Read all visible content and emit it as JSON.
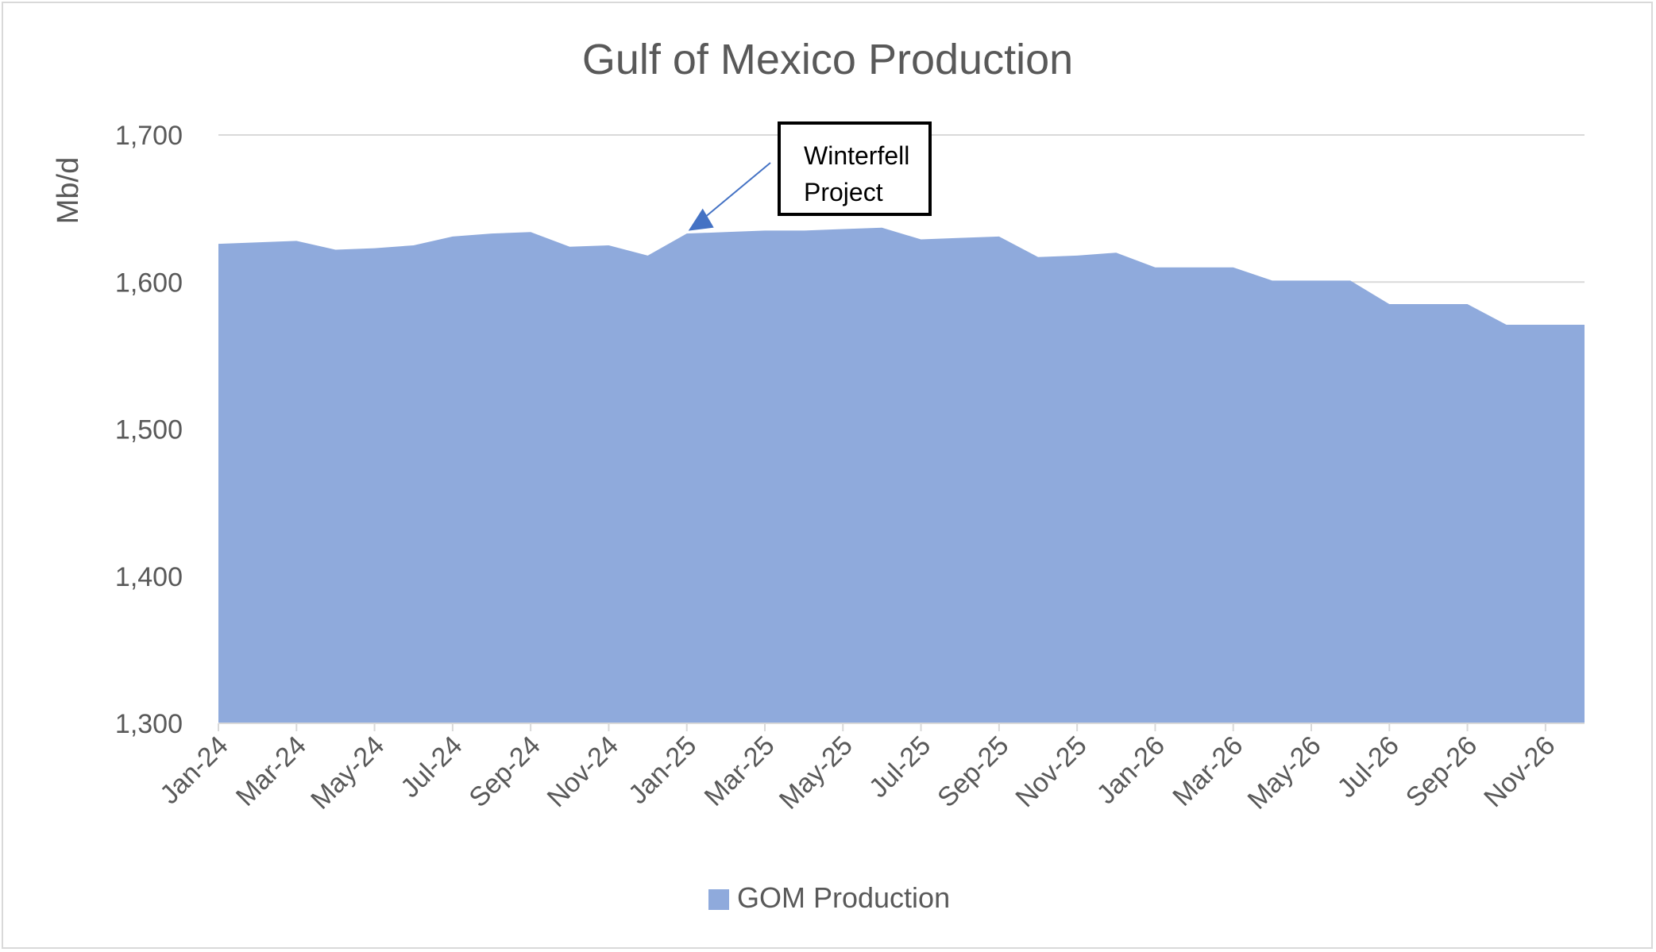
{
  "chart_data": {
    "type": "area",
    "title": "Gulf of Mexico Production",
    "ylabel": "Mb/d",
    "xlabel": "",
    "ylim": [
      1300,
      1700
    ],
    "yticks": [
      1300,
      1400,
      1500,
      1600,
      1700
    ],
    "ytick_labels": [
      "1,300",
      "1,400",
      "1,500",
      "1,600",
      "1,700"
    ],
    "grid": true,
    "legend_position": "bottom",
    "x": [
      "Jan-24",
      "Feb-24",
      "Mar-24",
      "Apr-24",
      "May-24",
      "Jun-24",
      "Jul-24",
      "Aug-24",
      "Sep-24",
      "Oct-24",
      "Nov-24",
      "Dec-24",
      "Jan-25",
      "Feb-25",
      "Mar-25",
      "Apr-25",
      "May-25",
      "Jun-25",
      "Jul-25",
      "Aug-25",
      "Sep-25",
      "Oct-25",
      "Nov-25",
      "Dec-25",
      "Jan-26",
      "Feb-26",
      "Mar-26",
      "Apr-26",
      "May-26",
      "Jun-26",
      "Jul-26",
      "Aug-26",
      "Sep-26",
      "Oct-26",
      "Nov-26",
      "Dec-26"
    ],
    "x_tick_labels": [
      "Jan-24",
      "Mar-24",
      "May-24",
      "Jul-24",
      "Sep-24",
      "Nov-24",
      "Jan-25",
      "Mar-25",
      "May-25",
      "Jul-25",
      "Sep-25",
      "Nov-25",
      "Jan-26",
      "Mar-26",
      "May-26",
      "Jul-26",
      "Sep-26",
      "Nov-26"
    ],
    "series": [
      {
        "name": "GOM Production",
        "color": "#8faadc",
        "values": [
          1626,
          1627,
          1628,
          1622,
          1623,
          1625,
          1631,
          1633,
          1634,
          1624,
          1625,
          1618,
          1633,
          1634,
          1635,
          1635,
          1636,
          1637,
          1629,
          1630,
          1631,
          1617,
          1618,
          1620,
          1610,
          1610,
          1610,
          1601,
          1601,
          1601,
          1585,
          1585,
          1585,
          1571,
          1571,
          1571
        ]
      }
    ],
    "annotations": [
      {
        "text_lines": [
          "Winterfell",
          "Project"
        ],
        "target_x": "Jan-25",
        "target_y": 1650
      }
    ]
  },
  "colors": {
    "area_fill": "#8faadc",
    "grid": "#d9d9d9",
    "text": "#595959",
    "arrow": "#4472c4"
  }
}
